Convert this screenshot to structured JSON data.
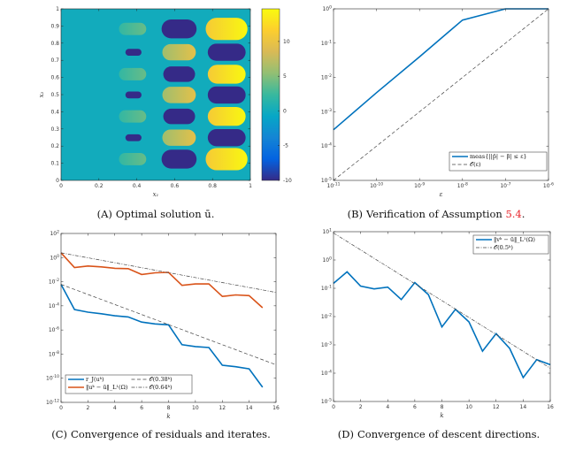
{
  "chart_data": [
    {
      "id": "A",
      "type": "heatmap",
      "caption_prefix": "(A)",
      "caption": "Optimal solution ū.",
      "xlabel": "x₁",
      "ylabel": "x₂",
      "xlim": [
        0,
        1
      ],
      "ylim": [
        0,
        1
      ],
      "xticks": [
        "0",
        "0.2",
        "0.4",
        "0.6",
        "0.8",
        "1"
      ],
      "yticks": [
        "0",
        "0.1",
        "0.2",
        "0.3",
        "0.4",
        "0.5",
        "0.6",
        "0.7",
        "0.8",
        "0.9",
        "1"
      ],
      "colormap": "parula",
      "clim": [
        -10,
        14.7
      ],
      "colorbar_ticks": [
        "-10",
        "-5",
        "0",
        "5",
        "10"
      ],
      "background_value": 0,
      "blobs": [
        {
          "x0": 0.306,
          "x1": 0.45,
          "yc": 0.124,
          "h": 0.072,
          "v0": 2,
          "v1": 4
        },
        {
          "x0": 0.34,
          "x1": 0.425,
          "yc": 0.249,
          "h": 0.04,
          "v0": -10,
          "v1": -10
        },
        {
          "x0": 0.306,
          "x1": 0.45,
          "yc": 0.373,
          "h": 0.072,
          "v0": 2,
          "v1": 4
        },
        {
          "x0": 0.34,
          "x1": 0.425,
          "yc": 0.498,
          "h": 0.04,
          "v0": -10,
          "v1": -10
        },
        {
          "x0": 0.306,
          "x1": 0.45,
          "yc": 0.619,
          "h": 0.072,
          "v0": 2,
          "v1": 4
        },
        {
          "x0": 0.34,
          "x1": 0.425,
          "yc": 0.747,
          "h": 0.04,
          "v0": -10,
          "v1": -10
        },
        {
          "x0": 0.306,
          "x1": 0.45,
          "yc": 0.883,
          "h": 0.072,
          "v0": 2,
          "v1": 4
        },
        {
          "x0": 0.531,
          "x1": 0.716,
          "yc": 0.124,
          "h": 0.11,
          "v0": -10,
          "v1": -10
        },
        {
          "x0": 0.535,
          "x1": 0.712,
          "yc": 0.249,
          "h": 0.095,
          "v0": 6,
          "v1": 9.5
        },
        {
          "x0": 0.54,
          "x1": 0.708,
          "yc": 0.373,
          "h": 0.09,
          "v0": -10,
          "v1": -10
        },
        {
          "x0": 0.535,
          "x1": 0.712,
          "yc": 0.498,
          "h": 0.095,
          "v0": 6,
          "v1": 9.5
        },
        {
          "x0": 0.54,
          "x1": 0.708,
          "yc": 0.619,
          "h": 0.09,
          "v0": -10,
          "v1": -10
        },
        {
          "x0": 0.535,
          "x1": 0.712,
          "yc": 0.747,
          "h": 0.095,
          "v0": 6,
          "v1": 9.5
        },
        {
          "x0": 0.531,
          "x1": 0.716,
          "yc": 0.883,
          "h": 0.11,
          "v0": -10,
          "v1": -10
        },
        {
          "x0": 0.764,
          "x1": 0.985,
          "yc": 0.124,
          "h": 0.13,
          "v0": 11,
          "v1": 14.5
        },
        {
          "x0": 0.775,
          "x1": 0.975,
          "yc": 0.249,
          "h": 0.1,
          "v0": -10,
          "v1": -10
        },
        {
          "x0": 0.775,
          "x1": 0.975,
          "yc": 0.373,
          "h": 0.11,
          "v0": 11,
          "v1": 14.5
        },
        {
          "x0": 0.775,
          "x1": 0.975,
          "yc": 0.498,
          "h": 0.1,
          "v0": -10,
          "v1": -10
        },
        {
          "x0": 0.775,
          "x1": 0.975,
          "yc": 0.619,
          "h": 0.11,
          "v0": 11,
          "v1": 14.5
        },
        {
          "x0": 0.775,
          "x1": 0.975,
          "yc": 0.747,
          "h": 0.1,
          "v0": -10,
          "v1": -10
        },
        {
          "x0": 0.764,
          "x1": 0.985,
          "yc": 0.883,
          "h": 0.13,
          "v0": 11,
          "v1": 14.5
        }
      ]
    },
    {
      "id": "B",
      "type": "line",
      "caption_prefix": "(B)",
      "caption": "Verification of Assumption ",
      "caption_ref": "5.4",
      "caption_suffix": ".",
      "xlabel": "ε",
      "xscale": "log",
      "yscale": "log",
      "xlim": [
        1e-11,
        1e-06
      ],
      "ylim": [
        1e-05,
        1
      ],
      "xticks": [
        "10^-11",
        "10^-10",
        "10^-9",
        "10^-8",
        "10^-7",
        "10^-6"
      ],
      "yticks": [
        "10^-5",
        "10^-4",
        "10^-3",
        "10^-2",
        "10^-1",
        "10^0"
      ],
      "legend": "bottom-right",
      "series": [
        {
          "name": "meas{||p̄| − β| ≤ ε}",
          "style": "solid",
          "color": "#0072BD",
          "x": [
            1e-11,
            1e-10,
            1e-09,
            1e-08,
            1e-07,
            1e-06
          ],
          "y": [
            0.0003,
            0.0036,
            0.04,
            0.47,
            1,
            1
          ]
        },
        {
          "name": "𝒪(ε)",
          "style": "dashed",
          "color": "#444444",
          "x": [
            1e-11,
            1e-06
          ],
          "y": [
            1e-05,
            1
          ]
        }
      ]
    },
    {
      "id": "C",
      "type": "line",
      "caption_prefix": "(C)",
      "caption": "Convergence of residuals and iterates.",
      "xlabel": "k",
      "yscale": "log",
      "xlim": [
        0,
        16
      ],
      "ylim": [
        1e-12,
        100
      ],
      "xticks": [
        "0",
        "2",
        "4",
        "6",
        "8",
        "10",
        "12",
        "14",
        "16"
      ],
      "yticks": [
        "10^-12",
        "10^-10",
        "10^-8",
        "10^-6",
        "10^-4",
        "10^-2",
        "10^0",
        "10^2"
      ],
      "legend": "bottom-left",
      "series": [
        {
          "name": "r_J(uᵏ)",
          "style": "solid",
          "color": "#0072BD",
          "x": [
            0,
            1,
            2,
            3,
            4,
            5,
            6,
            7,
            8,
            9,
            10,
            11,
            12,
            13,
            14,
            15
          ],
          "y": [
            0.006,
            5e-05,
            3e-05,
            2.2e-05,
            1.5e-05,
            1.2e-05,
            4.5e-06,
            3.2e-06,
            2.7e-06,
            6e-08,
            4.2e-08,
            3.5e-08,
            1.2e-09,
            9e-10,
            6e-10,
            1.8e-11
          ]
        },
        {
          "name": "‖uᵏ − ū‖_L¹(Ω)",
          "style": "solid",
          "color": "#D95319",
          "x": [
            0,
            1,
            2,
            3,
            4,
            5,
            6,
            7,
            8,
            9,
            10,
            11,
            12,
            13,
            14,
            15
          ],
          "y": [
            2.5,
            0.15,
            0.2,
            0.17,
            0.13,
            0.12,
            0.04,
            0.055,
            0.06,
            0.005,
            0.0065,
            0.0065,
            0.0006,
            0.0008,
            0.0007,
            7e-05
          ]
        },
        {
          "name": "𝒪(0.38ᵏ)",
          "style": "dashed",
          "color": "#444444",
          "x": [
            0,
            16
          ],
          "y": [
            0.006,
            1.3e-09
          ]
        },
        {
          "name": "𝒪(0.64ᵏ)",
          "style": "dashdot",
          "color": "#444444",
          "x": [
            0,
            16
          ],
          "y": [
            2.5,
            0.0013
          ]
        }
      ]
    },
    {
      "id": "D",
      "type": "line",
      "caption_prefix": "(D)",
      "caption": "Convergence of descent directions.",
      "xlabel": "k",
      "yscale": "log",
      "xlim": [
        0,
        16
      ],
      "ylim": [
        1e-05,
        10
      ],
      "xticks": [
        "0",
        "2",
        "4",
        "6",
        "8",
        "10",
        "12",
        "14",
        "16"
      ],
      "yticks": [
        "10^-5",
        "10^-4",
        "10^-3",
        "10^-2",
        "10^-1",
        "10^0",
        "10^1"
      ],
      "legend": "top-right",
      "series": [
        {
          "name": "‖vᵏ − ū‖_L¹(Ω)",
          "style": "solid",
          "color": "#0072BD",
          "x": [
            0,
            1,
            2,
            3,
            4,
            5,
            6,
            7,
            8,
            9,
            10,
            11,
            12,
            13,
            14,
            15,
            16
          ],
          "y": [
            0.15,
            0.38,
            0.12,
            0.095,
            0.11,
            0.04,
            0.16,
            0.06,
            0.0043,
            0.018,
            0.0065,
            0.0006,
            0.0025,
            0.00075,
            7e-05,
            0.0003,
            0.0002
          ]
        },
        {
          "name": "𝒪(0.5ᵏ)",
          "style": "dashdot",
          "color": "#444444",
          "x": [
            0,
            16
          ],
          "y": [
            9,
            0.00015
          ]
        }
      ]
    }
  ]
}
